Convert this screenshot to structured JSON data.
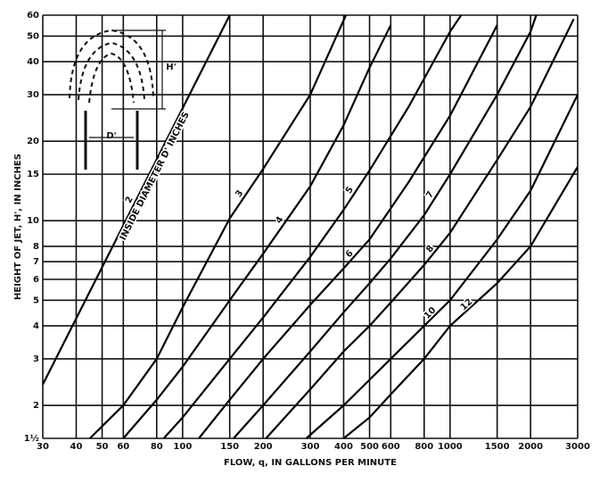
{
  "chart_data": {
    "type": "line",
    "y_label": "HEIGHT OF JET, H', IN INCHES",
    "x_label": "FLOW, q, IN GALLONS PER MINUTE",
    "curve_note": "INSIDE DIAMETER D' INCHES",
    "inset_labels": [
      "D'",
      "H'"
    ],
    "log_x": true,
    "log_y": true,
    "grid": true,
    "xlim": [
      30,
      3000
    ],
    "xticks": [
      30,
      40,
      50,
      60,
      80,
      100,
      150,
      200,
      300,
      400,
      500,
      600,
      800,
      1000,
      1500,
      2000,
      3000
    ],
    "ylim": [
      1.5,
      60
    ],
    "yticks": [
      {
        "value": 1.5,
        "label": "1½"
      },
      2,
      3,
      4,
      5,
      6,
      7,
      8,
      10,
      15,
      20,
      30,
      40,
      50,
      60
    ],
    "series": [
      {
        "name": "2",
        "color": "#000000",
        "x": [
          30,
          150
        ],
        "values": [
          2.4,
          60
        ]
      },
      {
        "name": "3",
        "color": "#000000",
        "x": [
          45,
          60,
          80,
          100,
          150,
          200,
          300,
          408
        ],
        "values": [
          1.5,
          2,
          3,
          4.7,
          10.2,
          15.7,
          30,
          60
        ]
      },
      {
        "name": "4",
        "color": "#000000",
        "x": [
          60,
          80,
          100,
          150,
          200,
          300,
          400,
          500,
          600
        ],
        "values": [
          1.5,
          2.1,
          2.8,
          5,
          7.5,
          13.5,
          23,
          38,
          55
        ]
      },
      {
        "name": "5",
        "color": "#000000",
        "x": [
          85,
          100,
          150,
          200,
          300,
          400,
          500,
          700,
          1000,
          1100
        ],
        "values": [
          1.5,
          1.8,
          3,
          4.3,
          7.3,
          11,
          15.5,
          27,
          52,
          60
        ]
      },
      {
        "name": "6",
        "color": "#000000",
        "x": [
          115,
          150,
          200,
          300,
          400,
          500,
          700,
          1000,
          1500
        ],
        "values": [
          1.5,
          2.1,
          3,
          4.8,
          6.6,
          8.5,
          14,
          25,
          55
        ]
      },
      {
        "name": "7",
        "color": "#000000",
        "x": [
          155,
          200,
          300,
          400,
          500,
          600,
          800,
          1000,
          1500,
          2000,
          2100
        ],
        "values": [
          1.5,
          2,
          3.2,
          4.5,
          5.8,
          7.2,
          10.5,
          15,
          30,
          52,
          60
        ]
      },
      {
        "name": "8",
        "color": "#000000",
        "x": [
          205,
          300,
          400,
          500,
          600,
          800,
          1000,
          1500,
          2000,
          2900
        ],
        "values": [
          1.5,
          2.3,
          3.2,
          4,
          4.9,
          6.8,
          9,
          17,
          27,
          58
        ]
      },
      {
        "name": "10",
        "color": "#000000",
        "x": [
          290,
          400,
          500,
          600,
          800,
          1000,
          1500,
          2000,
          3000
        ],
        "values": [
          1.5,
          2,
          2.5,
          3,
          4,
          5,
          8.5,
          13,
          30
        ]
      },
      {
        "name": "12",
        "color": "#000000",
        "x": [
          400,
          500,
          600,
          800,
          1000,
          1500,
          2000,
          3000
        ],
        "values": [
          1.5,
          1.8,
          2.2,
          3,
          4,
          5.8,
          8,
          16
        ]
      }
    ]
  }
}
